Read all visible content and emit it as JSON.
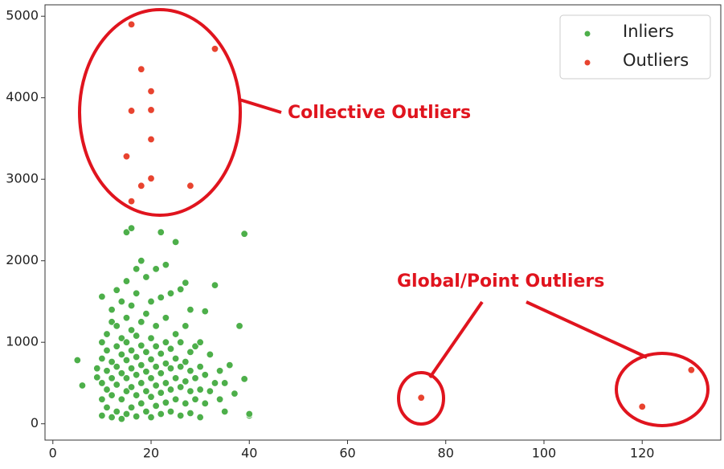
{
  "chart_data": {
    "type": "scatter",
    "xlim": [
      -1.6,
      136
    ],
    "ylim": [
      -200,
      5140
    ],
    "xticks": [
      0,
      20,
      40,
      60,
      80,
      100,
      120
    ],
    "yticks": [
      0,
      1000,
      2000,
      3000,
      4000,
      5000
    ],
    "legend": "upper right",
    "annotations": [
      "Collective Outliers",
      "Global/Point Outliers"
    ],
    "series": [
      {
        "name": "Inliers",
        "color": "#4daf4a",
        "x": [
          5,
          6,
          9,
          9,
          10,
          10,
          10,
          10,
          10,
          10,
          11,
          11,
          11,
          11,
          11,
          12,
          12,
          12,
          12,
          12,
          12,
          13,
          13,
          13,
          13,
          13,
          13,
          14,
          14,
          14,
          14,
          14,
          14,
          15,
          15,
          15,
          15,
          15,
          15,
          15,
          15,
          16,
          16,
          16,
          16,
          16,
          16,
          16,
          17,
          17,
          17,
          17,
          17,
          17,
          17,
          18,
          18,
          18,
          18,
          18,
          18,
          19,
          19,
          19,
          19,
          19,
          19,
          20,
          20,
          20,
          20,
          20,
          20,
          21,
          21,
          21,
          21,
          21,
          21,
          22,
          22,
          22,
          22,
          22,
          22,
          23,
          23,
          23,
          23,
          23,
          23,
          24,
          24,
          24,
          24,
          24,
          25,
          25,
          25,
          25,
          25,
          26,
          26,
          26,
          26,
          26,
          27,
          27,
          27,
          27,
          27,
          28,
          28,
          28,
          28,
          28,
          29,
          29,
          29,
          30,
          30,
          30,
          30,
          31,
          31,
          31,
          32,
          32,
          33,
          33,
          34,
          34,
          35,
          35,
          36,
          37,
          38,
          39,
          39,
          40,
          40
        ],
        "values": [
          780,
          470,
          570,
          680,
          100,
          300,
          500,
          800,
          1000,
          1560,
          200,
          420,
          650,
          900,
          1100,
          80,
          350,
          560,
          760,
          1250,
          1400,
          150,
          480,
          700,
          950,
          1200,
          1640,
          60,
          300,
          620,
          850,
          1050,
          1500,
          120,
          400,
          560,
          780,
          1000,
          1300,
          1750,
          2350,
          200,
          450,
          680,
          900,
          1150,
          1450,
          2400,
          90,
          350,
          600,
          820,
          1080,
          1600,
          1900,
          250,
          500,
          720,
          960,
          1250,
          2000,
          150,
          400,
          640,
          880,
          1350,
          1800,
          80,
          330,
          560,
          790,
          1050,
          1500,
          220,
          470,
          700,
          950,
          1200,
          1900,
          120,
          380,
          620,
          860,
          1550,
          2350,
          260,
          500,
          740,
          1000,
          1300,
          1950,
          150,
          420,
          680,
          920,
          1600,
          300,
          560,
          800,
          1100,
          2230,
          100,
          450,
          700,
          1000,
          1650,
          250,
          520,
          760,
          1200,
          1730,
          130,
          400,
          650,
          880,
          1400,
          300,
          560,
          950,
          80,
          420,
          700,
          1000,
          250,
          600,
          1380,
          400,
          850,
          500,
          1700,
          300,
          650,
          150,
          500,
          720,
          370,
          1200,
          2330,
          550,
          100,
          120
        ]
      },
      {
        "name": "Outliers",
        "color": "#e8432f",
        "x": [
          16,
          33,
          18,
          20,
          16,
          20,
          20,
          15,
          20,
          18,
          28,
          16,
          75,
          120,
          130
        ],
        "values": [
          4900,
          4600,
          4350,
          4080,
          3840,
          3850,
          3490,
          3280,
          3010,
          2920,
          2920,
          2730,
          320,
          210,
          660
        ]
      }
    ]
  }
}
